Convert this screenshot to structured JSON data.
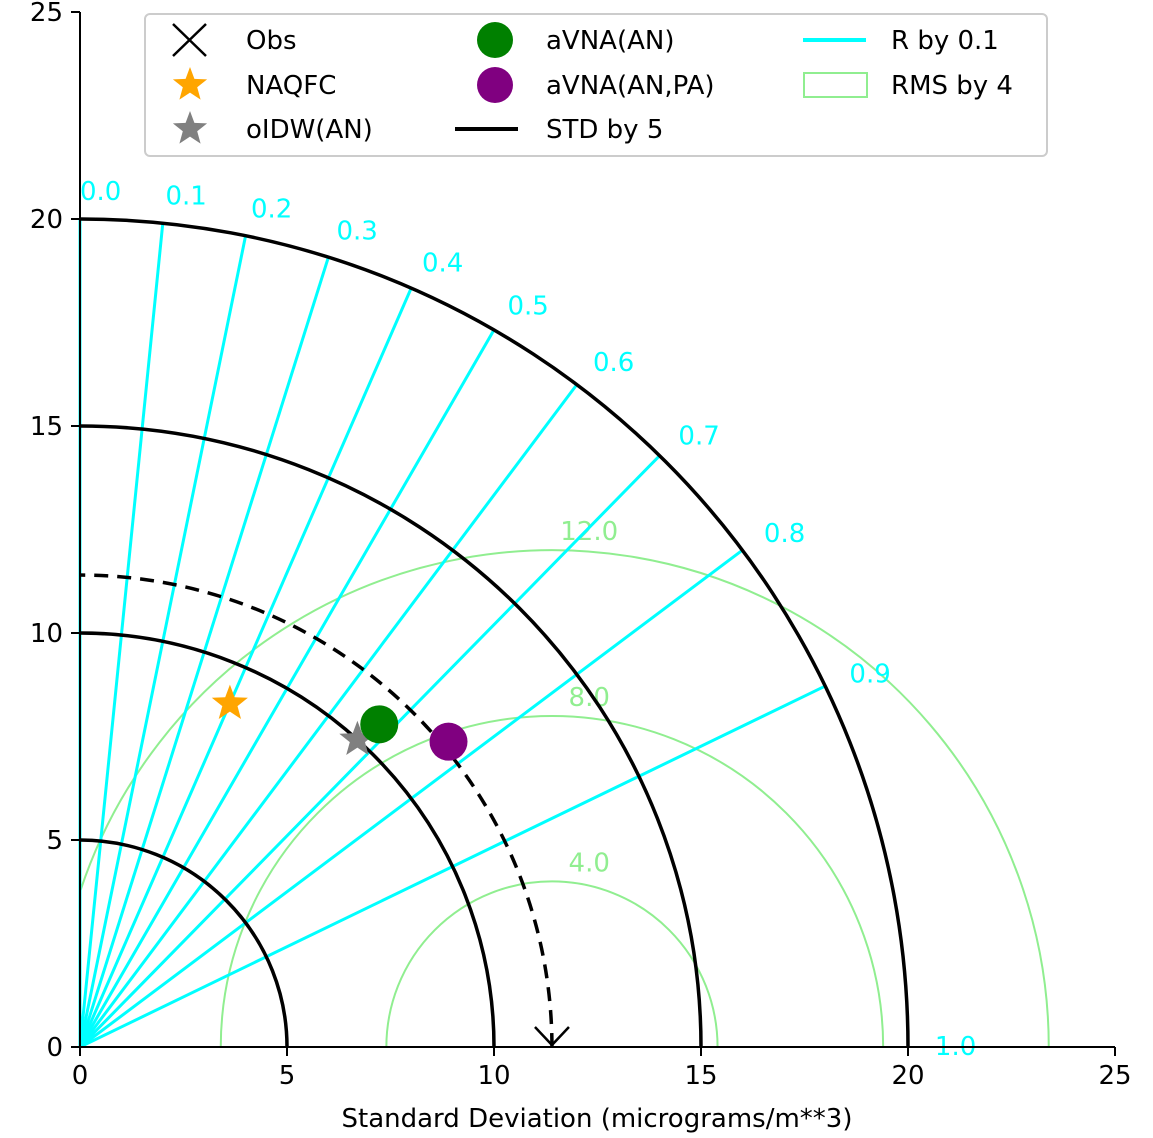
{
  "chart_data": {
    "type": "taylor_diagram",
    "xlabel": "Standard Deviation (micrograms/m**3)",
    "ylabel": "",
    "xlim": [
      0,
      25
    ],
    "ylim": [
      0,
      25
    ],
    "x_ticks": [
      "0",
      "5",
      "10",
      "15",
      "20",
      "25"
    ],
    "y_ticks": [
      "0",
      "5",
      "10",
      "15",
      "20",
      "25"
    ],
    "grid": false,
    "legend_position": "top",
    "observed_std": 11.4,
    "std_arcs": [
      5,
      10,
      15,
      20
    ],
    "correlation_lines": [
      0.1,
      0.2,
      0.3,
      0.4,
      0.5,
      0.6,
      0.7,
      0.8,
      0.9
    ],
    "correlation_labels": [
      "0.0",
      "0.1",
      "0.2",
      "0.3",
      "0.4",
      "0.5",
      "0.6",
      "0.7",
      "0.8",
      "0.9",
      "1.0"
    ],
    "rms_arcs": [
      4,
      8,
      12
    ],
    "rms_labels": [
      "4.0",
      "8.0",
      "12.0"
    ],
    "models": [
      {
        "name": "NAQFC",
        "marker": "star",
        "color": "#ffa500",
        "std": 9.05,
        "corr": 0.4
      },
      {
        "name": "oIDW(AN)",
        "marker": "star",
        "color": "#808080",
        "std": 10.0,
        "corr": 0.67
      },
      {
        "name": "aVNA(AN)",
        "marker": "circle",
        "color": "#008000",
        "std": 10.63,
        "corr": 0.68
      },
      {
        "name": "aVNA(AN,PA)",
        "marker": "circle",
        "color": "#800080",
        "std": 11.56,
        "corr": 0.77
      }
    ],
    "legend": [
      {
        "label": "Obs",
        "symbol": "x",
        "color": "#000000"
      },
      {
        "label": "NAQFC",
        "symbol": "star",
        "color": "#ffa500"
      },
      {
        "label": "oIDW(AN)",
        "symbol": "star",
        "color": "#808080"
      },
      {
        "label": "aVNA(AN)",
        "symbol": "circle",
        "color": "#008000"
      },
      {
        "label": "aVNA(AN,PA)",
        "symbol": "circle",
        "color": "#800080"
      },
      {
        "label": "STD by 5",
        "symbol": "line",
        "color": "#000000"
      },
      {
        "label": "R by 0.1",
        "symbol": "line",
        "color": "#00ffff"
      },
      {
        "label": "RMS by 4",
        "symbol": "rect",
        "color": "#90ee90"
      }
    ],
    "colors": {
      "correlation": "#00ffff",
      "rms": "#90ee90",
      "std": "#000000"
    }
  }
}
